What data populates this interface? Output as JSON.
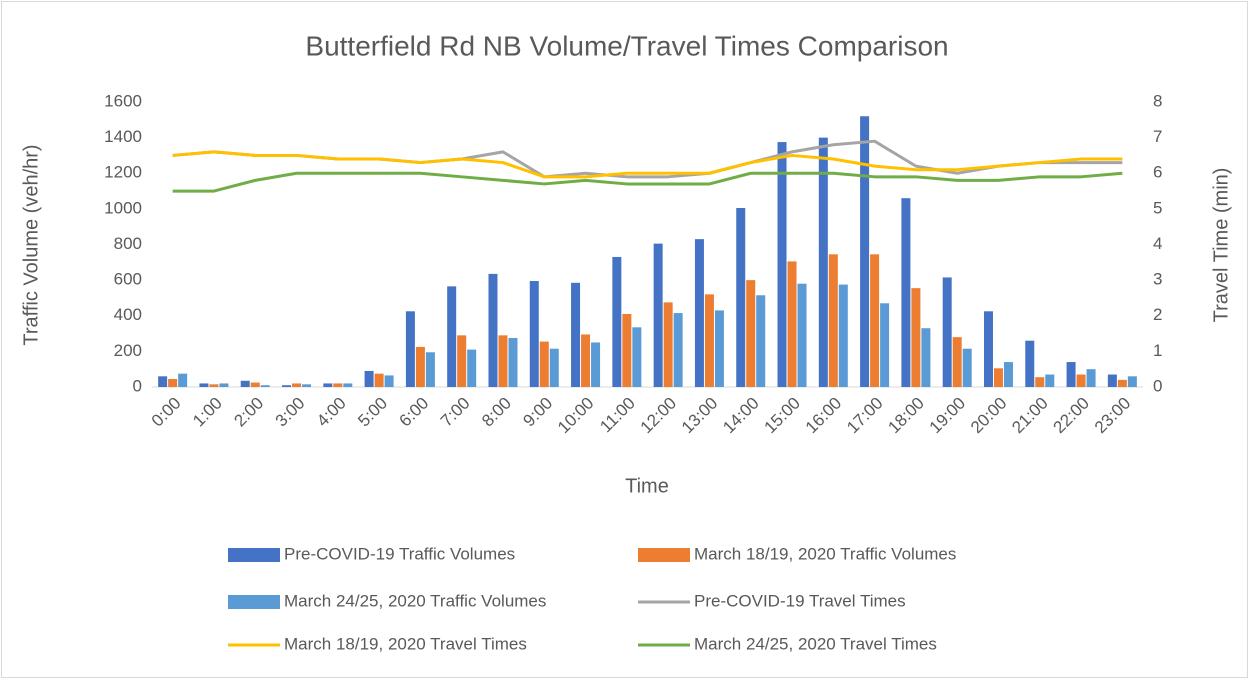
{
  "chart_data": {
    "type": "bar",
    "title": "Butterfield Rd NB Volume/Travel Times Comparison",
    "x_label": "Time",
    "y_label": "Traffic Volume (veh/hr)",
    "y2_label": "Travel Time (min)",
    "categories": [
      "0:00",
      "1:00",
      "2:00",
      "3:00",
      "4:00",
      "5:00",
      "6:00",
      "7:00",
      "8:00",
      "9:00",
      "10:00",
      "11:00",
      "12:00",
      "13:00",
      "14:00",
      "15:00",
      "16:00",
      "17:00",
      "18:00",
      "19:00",
      "20:00",
      "21:00",
      "22:00",
      "23:00"
    ],
    "ylim": [
      0,
      1600
    ],
    "yticks": [
      0,
      200,
      400,
      600,
      800,
      1000,
      1200,
      1400,
      1600
    ],
    "y2lim": [
      0,
      8
    ],
    "y2ticks": [
      0,
      1,
      2,
      3,
      4,
      5,
      6,
      7,
      8
    ],
    "grid": false,
    "legend": "bottom",
    "series": [
      {
        "name": "Pre-COVID-19 Traffic Volumes",
        "type": "bar",
        "color": "#4472c4",
        "values": [
          60,
          20,
          35,
          10,
          20,
          90,
          425,
          565,
          635,
          595,
          585,
          730,
          805,
          830,
          1005,
          1375,
          1400,
          1520,
          1060,
          615,
          425,
          260,
          140,
          70
        ]
      },
      {
        "name": "March 18/19, 2020 Traffic Volumes",
        "type": "bar",
        "color": "#ed7d31",
        "values": [
          45,
          15,
          25,
          20,
          20,
          75,
          225,
          290,
          290,
          255,
          295,
          410,
          475,
          520,
          600,
          705,
          745,
          745,
          555,
          280,
          105,
          55,
          70,
          40
        ]
      },
      {
        "name": "March 24/25, 2020 Traffic Volumes",
        "type": "bar",
        "color": "#5b9bd5",
        "values": [
          75,
          20,
          10,
          15,
          20,
          65,
          195,
          210,
          275,
          215,
          250,
          335,
          415,
          430,
          515,
          580,
          575,
          470,
          330,
          215,
          140,
          70,
          100,
          60
        ]
      },
      {
        "name": "Pre-COVID-19 Travel Times",
        "type": "line",
        "axis": "y2",
        "color": "#a5a5a5",
        "values": [
          6.5,
          6.6,
          6.5,
          6.5,
          6.4,
          6.4,
          6.3,
          6.4,
          6.6,
          5.9,
          6.0,
          5.9,
          5.9,
          6.0,
          6.3,
          6.6,
          6.8,
          6.9,
          6.2,
          6.0,
          6.2,
          6.3,
          6.3,
          6.3
        ]
      },
      {
        "name": "March 18/19, 2020 Travel Times",
        "type": "line",
        "axis": "y2",
        "color": "#ffc000",
        "values": [
          6.5,
          6.6,
          6.5,
          6.5,
          6.4,
          6.4,
          6.3,
          6.4,
          6.3,
          5.9,
          5.9,
          6.0,
          6.0,
          6.0,
          6.3,
          6.5,
          6.4,
          6.2,
          6.1,
          6.1,
          6.2,
          6.3,
          6.4,
          6.4
        ]
      },
      {
        "name": "March 24/25, 2020 Travel Times",
        "type": "line",
        "axis": "y2",
        "color": "#70ad47",
        "values": [
          5.5,
          5.5,
          5.8,
          6.0,
          6.0,
          6.0,
          6.0,
          5.9,
          5.8,
          5.7,
          5.8,
          5.7,
          5.7,
          5.7,
          6.0,
          6.0,
          6.0,
          5.9,
          5.9,
          5.8,
          5.8,
          5.9,
          5.9,
          6.0
        ]
      }
    ]
  }
}
